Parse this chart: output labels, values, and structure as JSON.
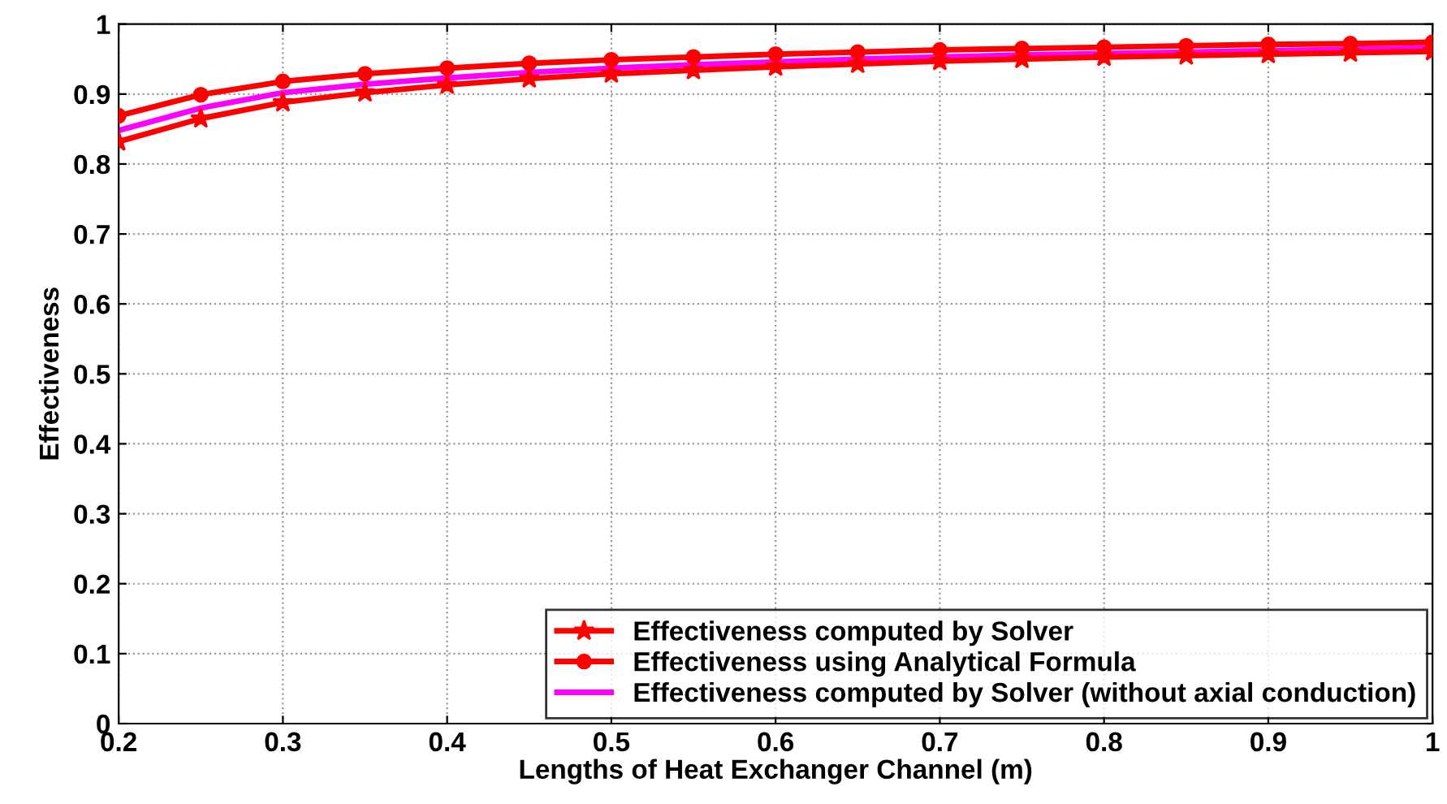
{
  "chart_data": {
    "type": "line",
    "xlabel": "Lengths of Heat Exchanger Channel (m)",
    "ylabel": "Effectiveness",
    "x": [
      0.2,
      0.25,
      0.3,
      0.35,
      0.4,
      0.45,
      0.5,
      0.55,
      0.6,
      0.65,
      0.7,
      0.75,
      0.8,
      0.85,
      0.9,
      0.95,
      1.0
    ],
    "series": [
      {
        "name": "Effectiveness computed by Solver",
        "color": "#ff0000",
        "marker": "star",
        "values": [
          0.832,
          0.865,
          0.888,
          0.902,
          0.913,
          0.922,
          0.929,
          0.934,
          0.939,
          0.943,
          0.947,
          0.95,
          0.953,
          0.955,
          0.957,
          0.959,
          0.961
        ]
      },
      {
        "name": "Effectiveness using Analytical Formula",
        "color": "#ff0000",
        "marker": "circle",
        "values": [
          0.869,
          0.899,
          0.918,
          0.929,
          0.937,
          0.944,
          0.949,
          0.953,
          0.957,
          0.96,
          0.963,
          0.965,
          0.967,
          0.969,
          0.971,
          0.972,
          0.974
        ]
      },
      {
        "name": "Effectiveness computed by Solver (without axial conduction)",
        "color": "#ff00ff",
        "marker": "none",
        "values": [
          0.848,
          0.88,
          0.902,
          0.914,
          0.923,
          0.931,
          0.937,
          0.942,
          0.946,
          0.95,
          0.953,
          0.956,
          0.958,
          0.96,
          0.962,
          0.964,
          0.966
        ]
      }
    ],
    "xlim": [
      0.2,
      1
    ],
    "xticks": [
      0.2,
      0.3,
      0.4,
      0.5,
      0.6,
      0.7,
      0.8,
      0.9,
      1
    ],
    "ylim": [
      0,
      1
    ],
    "yticks": [
      0,
      0.1,
      0.2,
      0.3,
      0.4,
      0.5,
      0.6,
      0.7,
      0.8,
      0.9,
      1
    ],
    "grid": true,
    "legend": "bottom right",
    "line_style": "solid"
  }
}
